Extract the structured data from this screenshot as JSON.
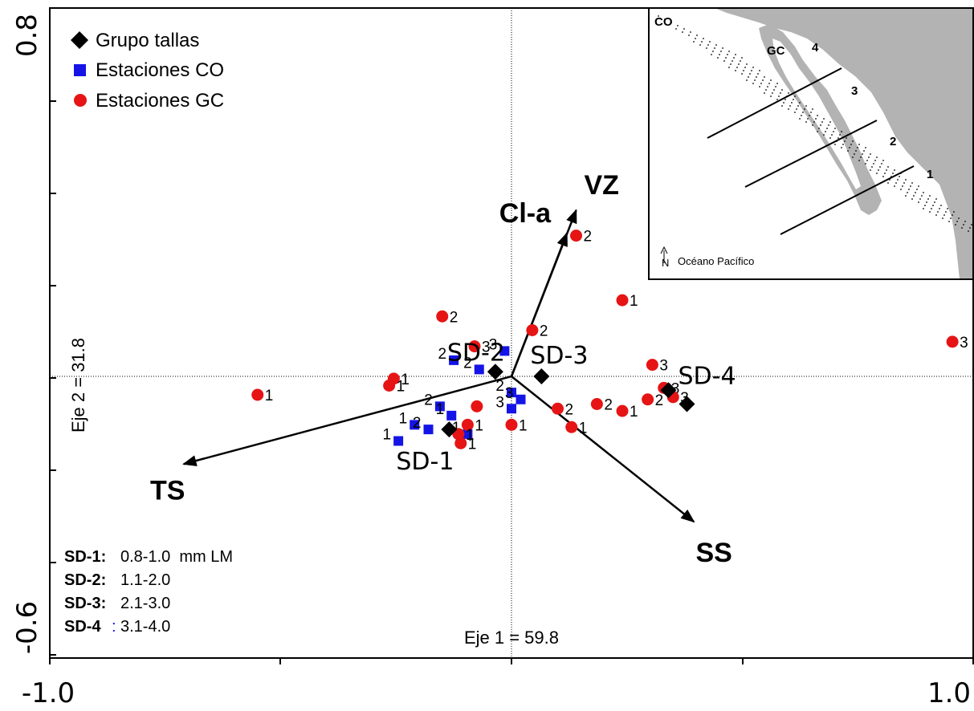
{
  "chart_data": {
    "type": "scatter",
    "xlim": [
      -1.0,
      1.0
    ],
    "ylim": [
      -0.6,
      0.8
    ],
    "x_tick_labels": [
      "-1.0",
      "1.0"
    ],
    "y_tick_labels": [
      "0.8",
      "-0.6"
    ],
    "x_axis_title": "Eje 1 = 59.8",
    "y_axis_title": "Eje 2 = 31.8",
    "grid": false,
    "legend": {
      "placement": "top-left",
      "entries": [
        {
          "label": "Grupo tallas",
          "marker": "diamond",
          "color": "#000000"
        },
        {
          "label": "Estaciones CO",
          "marker": "square",
          "color": "#1414e6"
        },
        {
          "label": "Estaciones GC",
          "marker": "circle",
          "color": "#e61414"
        }
      ]
    },
    "vectors": [
      {
        "label": "VZ",
        "x": 0.28,
        "y": 0.72
      },
      {
        "label": "Cl-a",
        "x": 0.24,
        "y": 0.62
      },
      {
        "label": "TS",
        "x": -1.42,
        "y": -0.38
      },
      {
        "label": "SS",
        "x": 0.79,
        "y": -0.63
      }
    ],
    "size_groups": [
      {
        "label": "SD-1",
        "x": -0.27,
        "y": -0.23
      },
      {
        "label": "SD-2",
        "x": -0.07,
        "y": 0.02
      },
      {
        "label": "SD-3",
        "x": 0.13,
        "y": 0.0
      },
      {
        "label": "SD-4",
        "x": 0.68,
        "y": -0.06
      }
    ],
    "stations_co": [
      {
        "label": "3",
        "x": -0.03,
        "y": 0.11
      },
      {
        "label": "2",
        "x": -0.25,
        "y": 0.07
      },
      {
        "label": "2",
        "x": -0.14,
        "y": 0.03
      },
      {
        "label": "2",
        "x": 0.0,
        "y": -0.07
      },
      {
        "label": "3",
        "x": 0.04,
        "y": -0.1
      },
      {
        "label": "3",
        "x": 0.0,
        "y": -0.14
      },
      {
        "label": "2",
        "x": -0.31,
        "y": -0.13
      },
      {
        "label": "1",
        "x": -0.26,
        "y": -0.17
      },
      {
        "label": "1",
        "x": -0.42,
        "y": -0.21
      },
      {
        "label": "2",
        "x": -0.36,
        "y": -0.23
      },
      {
        "label": "1",
        "x": -0.19,
        "y": -0.25
      },
      {
        "label": "1",
        "x": -0.49,
        "y": -0.28
      }
    ],
    "stations_gc": [
      {
        "label": "2",
        "x": 0.28,
        "y": 0.61
      },
      {
        "label": "1",
        "x": 0.48,
        "y": 0.33
      },
      {
        "label": "2",
        "x": -0.3,
        "y": 0.26
      },
      {
        "label": "2",
        "x": 0.09,
        "y": 0.2
      },
      {
        "label": "3",
        "x": -0.16,
        "y": 0.13
      },
      {
        "label": "3",
        "x": 1.91,
        "y": 0.15
      },
      {
        "label": "3",
        "x": 0.61,
        "y": 0.05
      },
      {
        "label": "1",
        "x": -0.51,
        "y": -0.01
      },
      {
        "label": "1",
        "x": -0.53,
        "y": -0.04
      },
      {
        "label": "1",
        "x": -1.1,
        "y": -0.08
      },
      {
        "label": "3",
        "x": 0.66,
        "y": -0.05
      },
      {
        "label": "2",
        "x": 0.59,
        "y": -0.1
      },
      {
        "label": "3",
        "x": 0.7,
        "y": -0.09
      },
      {
        "label": "2",
        "x": 0.37,
        "y": -0.12
      },
      {
        "label": "1",
        "x": 0.48,
        "y": -0.15
      },
      {
        "label": "2",
        "x": 0.2,
        "y": -0.14
      },
      {
        "label": "",
        "x": -0.15,
        "y": -0.13
      },
      {
        "label": "1",
        "x": -0.19,
        "y": -0.21
      },
      {
        "label": "1",
        "x": 0.0,
        "y": -0.21
      },
      {
        "label": "1",
        "x": 0.26,
        "y": -0.22
      },
      {
        "label": "1",
        "x": -0.23,
        "y": -0.25
      },
      {
        "label": "1",
        "x": -0.22,
        "y": -0.29
      }
    ],
    "size_class_definitions": [
      {
        "key": "SD-1:",
        "value": "0.8-1.0  mm LM"
      },
      {
        "key": "SD-2:",
        "value": "1.1-2.0"
      },
      {
        "key": "SD-3:",
        "value": "2.1-3.0"
      },
      {
        "key": "SD-4",
        "value": "3.1-4.0",
        "colon": ":"
      }
    ]
  },
  "inset_map": {
    "labels": {
      "co": "CO",
      "gc": "GC",
      "region4": "4",
      "region3": "3",
      "region2": "2",
      "region1": "1",
      "ocean": "Océano Pacífico"
    },
    "land_color": "#b3b3b3",
    "north_icon": "north-arrow-icon"
  },
  "colors": {
    "co": "#1414e6",
    "gc": "#e61414",
    "group": "#000000"
  }
}
